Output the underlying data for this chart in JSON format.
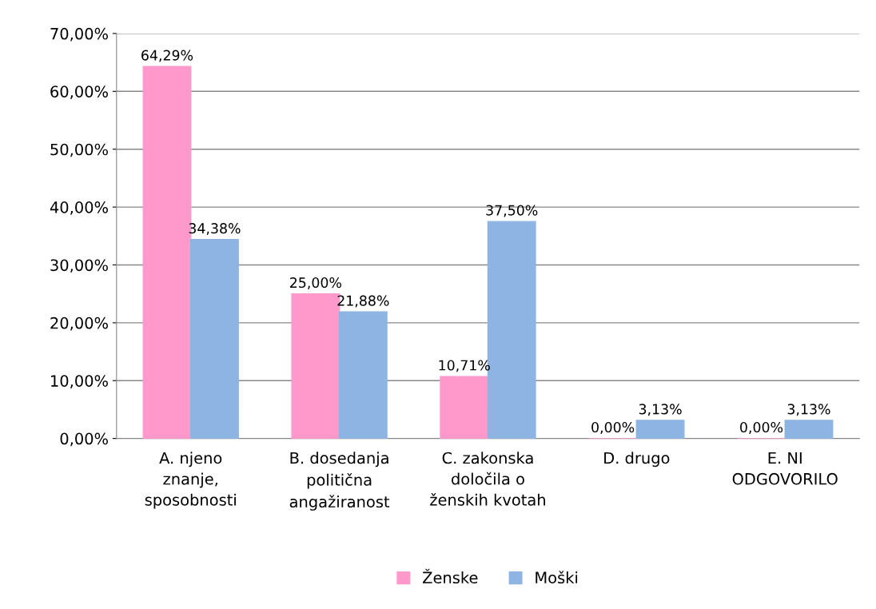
{
  "chart_data": {
    "type": "bar",
    "categories": [
      "A. njeno\nznanje,\nsposobnosti",
      "B. dosedanja\npolitična\nangažiranost",
      "C. zakonska\ndoločila o\nženskih kvotah",
      "D. drugo",
      "E. NI\nODGOVORILO"
    ],
    "series": [
      {
        "name": "Ženske",
        "color": "#ff99cc",
        "values": [
          64.29,
          25.0,
          10.71,
          0.0,
          0.0
        ],
        "value_labels": [
          "64,29%",
          "25,00%",
          "10,71%",
          "0,00%",
          "0,00%"
        ]
      },
      {
        "name": "Moški",
        "color": "#8eb4e3",
        "values": [
          34.38,
          21.88,
          37.5,
          3.13,
          3.13
        ],
        "value_labels": [
          "34,38%",
          "21,88%",
          "37,50%",
          "3,13%",
          "3,13%"
        ]
      }
    ],
    "ylim": [
      0,
      70
    ],
    "yticks": [
      {
        "value": 0,
        "label": "0,00%"
      },
      {
        "value": 10,
        "label": "10,00%"
      },
      {
        "value": 20,
        "label": "20,00%"
      },
      {
        "value": 30,
        "label": "30,00%"
      },
      {
        "value": 40,
        "label": "40,00%"
      },
      {
        "value": 50,
        "label": "50,00%"
      },
      {
        "value": 60,
        "label": "60,00%"
      },
      {
        "value": 70,
        "label": "70,00%"
      }
    ],
    "grid": "y",
    "legend": "bottom"
  }
}
